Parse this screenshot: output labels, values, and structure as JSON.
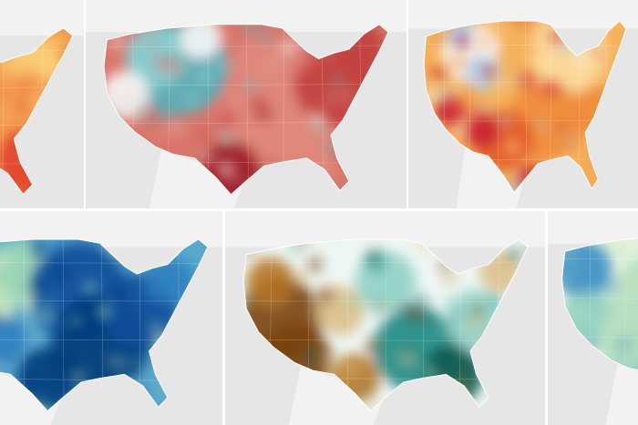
{
  "panels": [
    {
      "id": "p1",
      "scheme": "temperature",
      "colors": {
        "ocean": "#e6e6e6",
        "land": "#f2f2f2",
        "base": "#f29a4a",
        "accents": [
          "#fbd27a",
          "#f5a554",
          "#ec6a36",
          "#e03f2b",
          "#d7362a"
        ]
      }
    },
    {
      "id": "p2",
      "scheme": "temperature-anomaly",
      "colors": {
        "ocean": "#e6e6e6",
        "land": "#f2f2f2",
        "base": "#d9766b",
        "accents": [
          "#54b4bc",
          "#8dcfd2",
          "#f7f7f7",
          "#e08a7b",
          "#c2403f",
          "#9c1a24"
        ]
      }
    },
    {
      "id": "p3",
      "scheme": "temperature",
      "colors": {
        "ocean": "#e6e6e6",
        "land": "#f2f2f2",
        "base": "#f5b25c",
        "accents": [
          "#f7f7f7",
          "#a9c8e6",
          "#fcdca0",
          "#f08c3c",
          "#e35a2a",
          "#c81f34"
        ]
      }
    },
    {
      "id": "p4",
      "scheme": "precipitation",
      "colors": {
        "ocean": "#e6e6e6",
        "land": "#f2f2f2",
        "base": "#5aa8cc",
        "accents": [
          "#eaf5c4",
          "#9fd8b6",
          "#2e7fc0",
          "#0a4e9a",
          "#063a7a"
        ]
      }
    },
    {
      "id": "p5",
      "scheme": "precipitation-anomaly",
      "colors": {
        "ocean": "#e6e6e6",
        "land": "#f2f2f2",
        "base": "#eef7f4",
        "accents": [
          "#7a4411",
          "#b7782a",
          "#dcc089",
          "#8fd0c6",
          "#1f8a84",
          "#06594f"
        ]
      }
    },
    {
      "id": "p6",
      "scheme": "precipitation",
      "colors": {
        "ocean": "#e6e6e6",
        "land": "#f2f2f2",
        "base": "#e6f4dc",
        "accents": [
          "#b7dfbf",
          "#8ccfc0",
          "#3b8fc8"
        ]
      }
    }
  ]
}
